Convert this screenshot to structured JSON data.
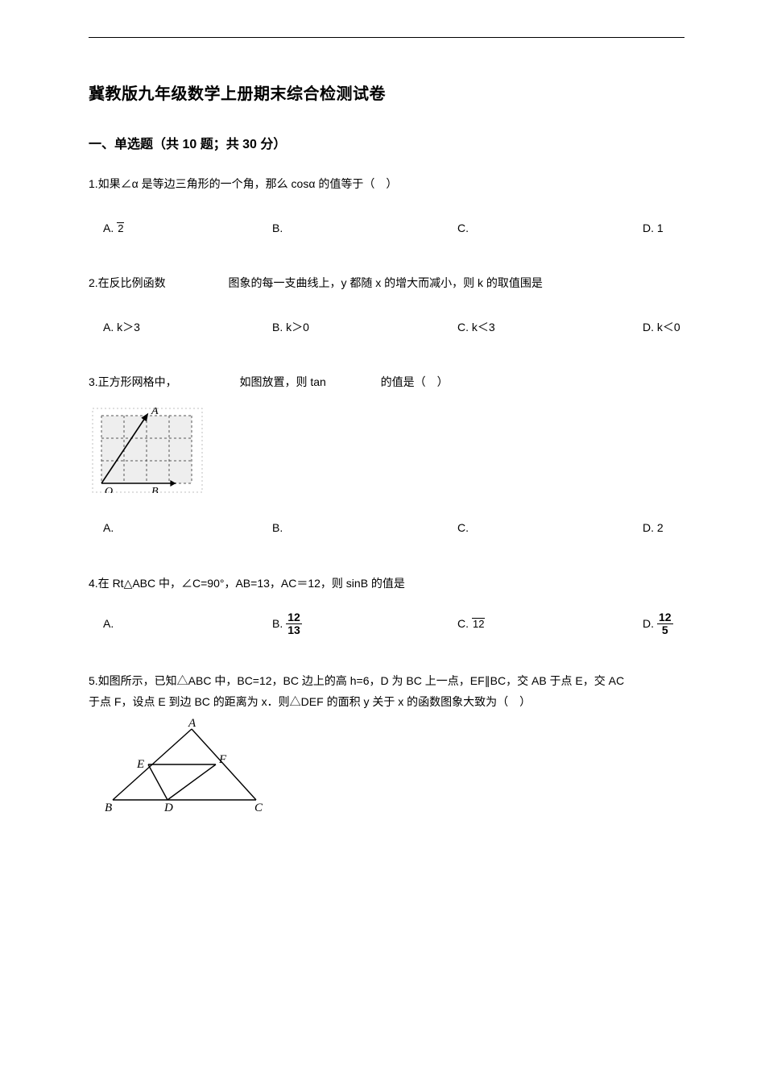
{
  "title": "冀教版九年级数学上册期末综合检测试卷",
  "section1": "一、单选题（共 10 题；共 30 分）",
  "q1": {
    "stem": "1.如果∠α 是等边三角形的一个角，那么 cosα 的值等于（　）",
    "A_prefix": "A.",
    "A_num": "",
    "A_den": "2",
    "B": "B.",
    "C": "C.",
    "D": "D. 1"
  },
  "q2": {
    "stem_a": "2.在反比例函数",
    "stem_b": "图象的每一支曲线上，y 都随 x 的增大而减小，则 k 的取值围是",
    "A": "A. k＞3",
    "B": "B. k＞0",
    "C": "C. k＜3",
    "D": "D. k＜0"
  },
  "q3": {
    "stem_a": "3.正方形网格中，",
    "stem_b": "如图放置，则 tan",
    "stem_c": "的值是（　）",
    "A": "A.",
    "B": "B.",
    "C": "C.",
    "D": "D. 2",
    "grid": {
      "bg": "#eeeeee",
      "border": "#bfbfbf",
      "line": "#000000",
      "cols": 4,
      "rows": 3,
      "cell": 28,
      "pad": 6,
      "labels": {
        "O": "O",
        "A": "A",
        "B": "B"
      },
      "font": "italic 14px 'Times New Roman', serif"
    }
  },
  "q4": {
    "stem": "4.在 Rt△ABC 中，∠C=90°，AB=13，AC＝12，则 sinB 的值是",
    "A": "A.",
    "B_prefix": "B.",
    "B_num": "12",
    "B_den": "13",
    "C_prefix": "C.",
    "C_num": "",
    "C_den": "12",
    "D_prefix": "D.",
    "D_num": "12",
    "D_den": "5"
  },
  "q5": {
    "line1": "5.如图所示，已知△ABC 中，BC=12，BC 边上的高 h=6，D 为 BC 上一点，EF∥BC，交 AB 于点 E，交 AC",
    "line2": "于点 F，设点 E 到边 BC 的距离为 x．则△DEF 的面积 y 关于 x 的函数图象大致为（　）",
    "tri": {
      "stroke": "#000000",
      "font": "italic 15px 'Times New Roman', serif",
      "labels": {
        "A": "A",
        "B": "B",
        "C": "C",
        "D": "D",
        "E": "E",
        "F": "F"
      }
    }
  }
}
